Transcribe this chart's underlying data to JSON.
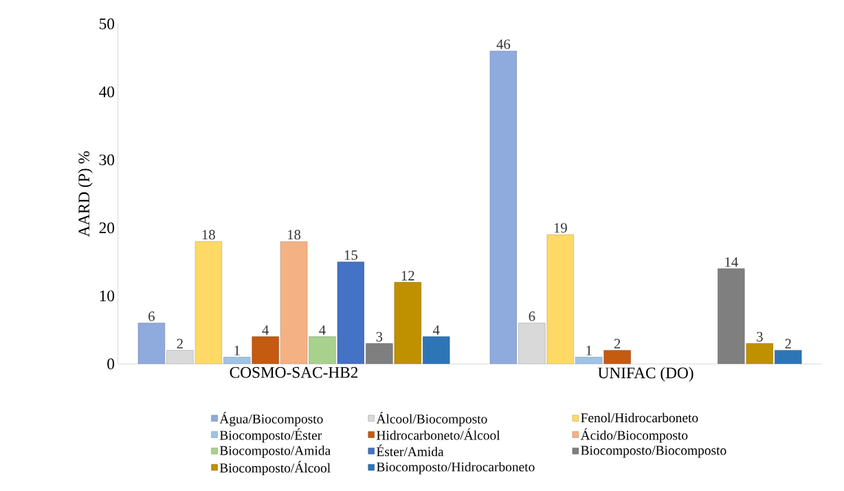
{
  "chart_data": {
    "type": "bar",
    "ylabel": "AARD (P) %",
    "categories": [
      "COSMO-SAC-HB2",
      "UNIFAC (DO)"
    ],
    "ylim": [
      0,
      50
    ],
    "yticks": [
      0,
      10,
      20,
      30,
      40,
      50
    ],
    "grid": false,
    "legend": "bottom",
    "data_labels": true,
    "series": [
      {
        "name": "Água/Biocomposto",
        "color": "#8faadc",
        "values": [
          6,
          46
        ]
      },
      {
        "name": "Álcool/Biocomposto",
        "color": "#d9d9d9",
        "values": [
          2,
          6
        ]
      },
      {
        "name": "Fenol/Hidrocarboneto",
        "color": "#ffd966",
        "values": [
          18,
          19
        ]
      },
      {
        "name": "Biocomposto/Éster",
        "color": "#9dc3e6",
        "values": [
          1,
          1
        ]
      },
      {
        "name": "Hidrocarboneto/Álcool",
        "color": "#c55a11",
        "values": [
          4,
          2
        ]
      },
      {
        "name": "Ácido/Biocomposto",
        "color": "#f4b183",
        "values": [
          18,
          null
        ]
      },
      {
        "name": "Biocomposto/Amida",
        "color": "#a9d18e",
        "values": [
          4,
          null
        ]
      },
      {
        "name": "Éster/Amida",
        "color": "#4472c4",
        "values": [
          15,
          null
        ]
      },
      {
        "name": "Biocomposto/Biocomposto",
        "color": "#7f7f7f",
        "values": [
          3,
          14
        ]
      },
      {
        "name": "Biocomposto/Álcool",
        "color": "#bf9000",
        "values": [
          12,
          3
        ]
      },
      {
        "name": "Biocomposto/Hidrocarboneto",
        "color": "#2e75b6",
        "values": [
          4,
          2
        ]
      }
    ]
  }
}
